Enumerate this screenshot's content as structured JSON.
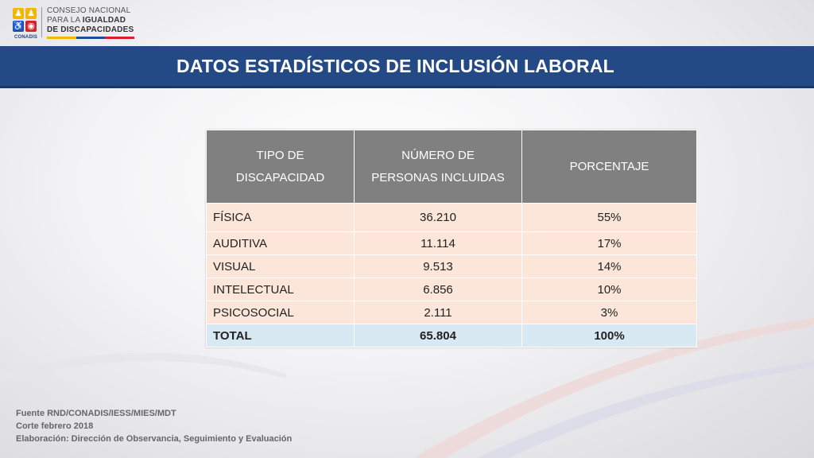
{
  "logo": {
    "line1": "CONSEJO NACIONAL",
    "line2_prefix": "PARA LA ",
    "line2_bold": "IGUALDAD",
    "line3": "DE DISCAPACIDADES",
    "caption": "CONADIS",
    "stripe_colors": [
      "#f2b705",
      "#1f4e9b",
      "#d6232a"
    ]
  },
  "title": "DATOS ESTADÍSTICOS DE INCLUSIÓN LABORAL",
  "table": {
    "headers": {
      "col1_line1": "TIPO DE",
      "col1_line2": "DISCAPACIDAD",
      "col2_line1": "NÚMERO DE",
      "col2_line2": "PERSONAS INCLUIDAS",
      "col3": "PORCENTAJE"
    },
    "rows": [
      {
        "tipo": "FÍSICA",
        "numero": "36.210",
        "porcentaje": "55%"
      },
      {
        "tipo": "AUDITIVA",
        "numero": "11.114",
        "porcentaje": "17%"
      },
      {
        "tipo": "VISUAL",
        "numero": "9.513",
        "porcentaje": "14%"
      },
      {
        "tipo": "INTELECTUAL",
        "numero": "6.856",
        "porcentaje": "10%"
      },
      {
        "tipo": "PSICOSOCIAL",
        "numero": "2.111",
        "porcentaje": "3%"
      }
    ],
    "total": {
      "tipo": "TOTAL",
      "numero": "65.804",
      "porcentaje": "100%"
    }
  },
  "footer": {
    "line1": "Fuente RND/CONADIS/IESS/MIES/MDT",
    "line2": "Corte febrero 2018",
    "line3": "Elaboración: Dirección de Observancia, Seguimiento y Evaluación"
  },
  "colors": {
    "title_band": "#244a86",
    "header_bg": "#808080",
    "row_bg": "#fbe6d9",
    "total_bg": "#d9e9f3"
  }
}
